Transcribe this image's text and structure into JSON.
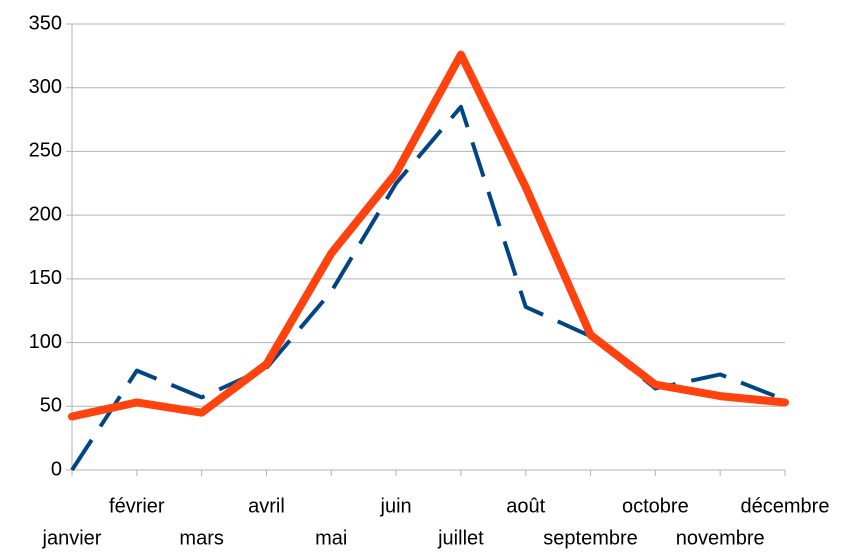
{
  "chart_data": {
    "type": "line",
    "categories": [
      "janvier",
      "février",
      "mars",
      "avril",
      "mai",
      "juin",
      "juillet",
      "août",
      "septembre",
      "octobre",
      "novembre",
      "décembre"
    ],
    "series": [
      {
        "color": "#004586",
        "dashed": true,
        "values": [
          0,
          78,
          57,
          80,
          140,
          225,
          285,
          128,
          105,
          64,
          75,
          55
        ]
      },
      {
        "color": "#ff420e",
        "dashed": false,
        "values": [
          42,
          53,
          45,
          83,
          170,
          233,
          326,
          222,
          106,
          67,
          58,
          53
        ]
      }
    ],
    "ylim": [
      0,
      350
    ],
    "yticks": [
      0,
      50,
      100,
      150,
      200,
      250,
      300,
      350
    ],
    "grid": true
  }
}
